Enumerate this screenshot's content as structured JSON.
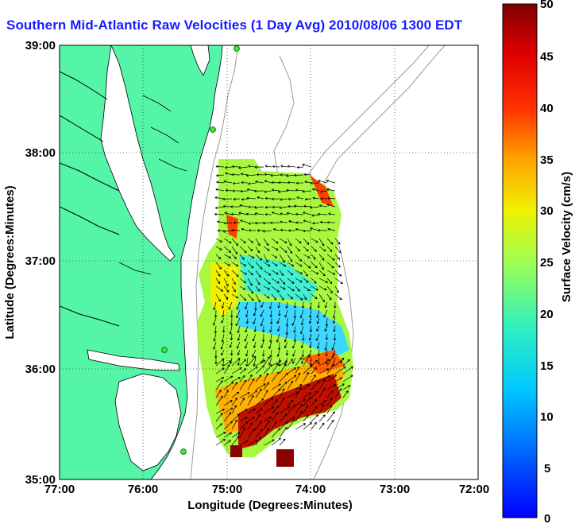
{
  "title": "Southern Mid-Atlantic Raw Velocities (1 Day Avg) 2010/08/06 1300 EDT",
  "map": {
    "xlabel": "Longitude (Degrees:Minutes)",
    "ylabel": "Latitude (Degrees:Minutes)",
    "x_ticks": [
      "77:00",
      "76:00",
      "75:00",
      "74:00",
      "73:00",
      "72:00"
    ],
    "y_ticks": [
      "39:00",
      "38:00",
      "37:00",
      "36:00",
      "35:00"
    ],
    "land_color": "#55f5a8",
    "grid": "dotted"
  },
  "colorbar": {
    "label": "Surface Velocity (cm/s)",
    "ticks": [
      "50",
      "45",
      "40",
      "35",
      "30",
      "25",
      "20",
      "15",
      "10",
      "5",
      "0"
    ],
    "range": [
      0,
      50
    ],
    "colormap": "jet"
  }
}
